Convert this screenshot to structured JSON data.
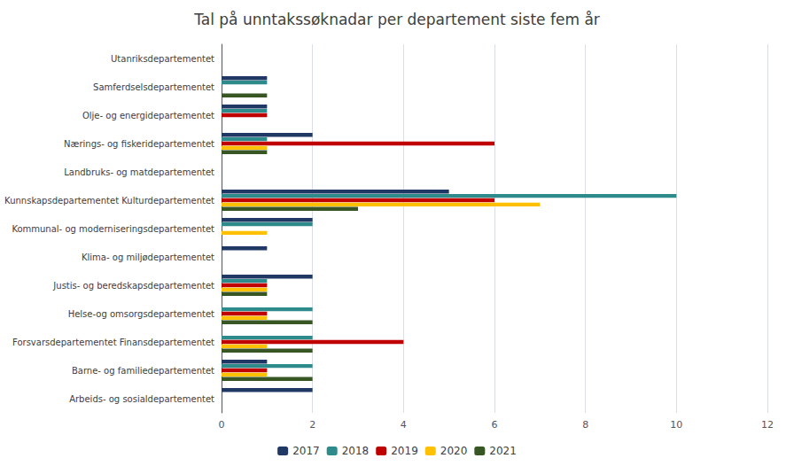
{
  "chart_data": {
    "type": "bar",
    "orientation": "horizontal",
    "title": "Tal på unntakssøknadar per departement siste fem år",
    "categories": [
      "Arbeids- og sosialdepartementet",
      "Barne- og familiedepartementet",
      "Forsvarsdepartementet Finansdepartementet",
      "Helse-og omsorgsdepartementet",
      "Justis- og beredskapsdepartementet",
      "Klima- og miljødepartementet",
      "Kommunal- og moderniseringsdepartementet",
      "Kunnskapsdepartementet Kulturdepartementet",
      "Landbruks- og matdepartementet",
      "Nærings- og fiskeridepartementet",
      "Olje- og energidepartementet",
      "Samferdselsdepartementet",
      "Utanriksdepartementet"
    ],
    "series": [
      {
        "name": "2017",
        "color": "#1f3864",
        "values": [
          2,
          1,
          0,
          0,
          2,
          1,
          2,
          5,
          0,
          2,
          1,
          1,
          0
        ]
      },
      {
        "name": "2018",
        "color": "#2e8b8b",
        "values": [
          0,
          2,
          2,
          2,
          1,
          0,
          2,
          10,
          0,
          1,
          1,
          1,
          0
        ]
      },
      {
        "name": "2019",
        "color": "#c00000",
        "values": [
          0,
          1,
          4,
          1,
          1,
          0,
          0,
          6,
          0,
          6,
          1,
          0,
          0
        ]
      },
      {
        "name": "2020",
        "color": "#ffc000",
        "values": [
          0,
          1,
          1,
          1,
          1,
          0,
          1,
          7,
          0,
          1,
          0,
          0,
          0
        ]
      },
      {
        "name": "2021",
        "color": "#375623",
        "values": [
          0,
          2,
          2,
          2,
          1,
          0,
          0,
          3,
          0,
          1,
          0,
          1,
          0
        ]
      }
    ],
    "xlim": [
      0,
      12
    ],
    "xticks": [
      0,
      2,
      4,
      6,
      8,
      10,
      12
    ],
    "grid": true,
    "legend": "bottom"
  }
}
